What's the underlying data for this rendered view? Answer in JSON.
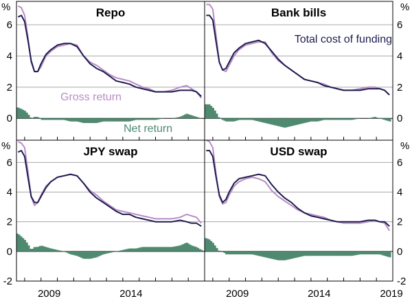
{
  "chart_data": {
    "type": "line",
    "y_unit": "%",
    "x_ticks": [
      "2009",
      "2014",
      "2019"
    ],
    "x_range": [
      2007.5,
      2019.0
    ],
    "y_ticks_top": [
      0,
      2,
      4,
      6
    ],
    "y_ticks_bottom": [
      -2,
      0,
      2,
      4,
      6
    ],
    "ylim_top": [
      -1.4,
      7.5
    ],
    "ylim_bottom": [
      -2,
      7.5
    ],
    "annotations": {
      "total_cost": "Total cost of funding",
      "gross": "Gross return",
      "net": "Net return"
    },
    "colors": {
      "total_cost": "#1c1c4e",
      "gross": "#b88bc6",
      "net": "#4f8a70",
      "grid": "#a8a8a8"
    },
    "x": [
      2007.6,
      2007.8,
      2008.0,
      2008.2,
      2008.4,
      2008.6,
      2008.8,
      2009.0,
      2009.3,
      2009.6,
      2010.0,
      2010.4,
      2010.8,
      2011.2,
      2011.6,
      2012.0,
      2012.4,
      2012.8,
      2013.2,
      2013.6,
      2014.0,
      2014.4,
      2014.8,
      2015.2,
      2015.6,
      2016.0,
      2016.5,
      2017.0,
      2017.5,
      2017.9,
      2018.2,
      2018.5,
      2018.8
    ],
    "panels": [
      {
        "title": "Repo",
        "series": [
          {
            "name": "Gross return",
            "values": [
              7.2,
              7.1,
              6.6,
              5.2,
              3.6,
              3.0,
              3.0,
              3.3,
              4.0,
              4.3,
              4.6,
              4.7,
              4.8,
              4.7,
              4.0,
              3.6,
              3.4,
              3.1,
              2.8,
              2.6,
              2.5,
              2.4,
              2.2,
              2.0,
              1.9,
              1.7,
              1.7,
              1.8,
              2.0,
              2.1,
              1.9,
              1.7,
              1.3
            ]
          },
          {
            "name": "Total cost of funding",
            "values": [
              6.5,
              6.6,
              6.2,
              5.0,
              3.7,
              3.0,
              3.0,
              3.5,
              4.1,
              4.4,
              4.7,
              4.8,
              4.8,
              4.6,
              4.0,
              3.5,
              3.2,
              3.0,
              2.7,
              2.4,
              2.3,
              2.2,
              2.0,
              1.9,
              1.8,
              1.7,
              1.7,
              1.7,
              1.8,
              1.8,
              1.8,
              1.7,
              1.4
            ]
          },
          {
            "name": "Net return",
            "values": [
              0.7,
              0.6,
              0.5,
              0.3,
              0.0,
              0.1,
              0.1,
              -0.1,
              -0.1,
              -0.1,
              -0.1,
              -0.1,
              -0.2,
              -0.2,
              -0.3,
              -0.3,
              -0.3,
              -0.2,
              -0.2,
              -0.2,
              -0.2,
              -0.2,
              -0.1,
              -0.1,
              -0.1,
              -0.1,
              0.0,
              0.0,
              0.1,
              0.3,
              0.2,
              0.1,
              0.0
            ]
          }
        ]
      },
      {
        "title": "Bank bills",
        "series": [
          {
            "name": "Gross return",
            "values": [
              7.3,
              7.3,
              7.0,
              5.3,
              3.6,
              3.1,
              3.0,
              3.4,
              4.0,
              4.4,
              4.7,
              4.8,
              4.9,
              4.9,
              4.2,
              3.7,
              3.4,
              3.1,
              2.8,
              2.5,
              2.4,
              2.3,
              2.2,
              2.0,
              1.9,
              1.8,
              1.8,
              1.9,
              2.0,
              2.0,
              1.9,
              1.8,
              1.5
            ]
          },
          {
            "name": "Total cost of funding",
            "values": [
              6.6,
              6.6,
              6.3,
              4.9,
              3.6,
              3.1,
              3.2,
              3.6,
              4.2,
              4.5,
              4.8,
              4.9,
              5.0,
              4.8,
              4.3,
              3.8,
              3.4,
              3.1,
              2.8,
              2.5,
              2.4,
              2.3,
              2.1,
              2.0,
              1.9,
              1.8,
              1.8,
              1.8,
              1.9,
              1.9,
              1.9,
              1.8,
              1.5
            ]
          },
          {
            "name": "Net return",
            "values": [
              0.9,
              0.9,
              0.7,
              0.4,
              0.0,
              -0.1,
              -0.2,
              -0.2,
              -0.2,
              -0.1,
              -0.1,
              -0.1,
              -0.2,
              -0.3,
              -0.4,
              -0.5,
              -0.6,
              -0.5,
              -0.4,
              -0.3,
              -0.2,
              -0.2,
              -0.1,
              -0.1,
              -0.1,
              -0.1,
              -0.1,
              0.0,
              0.0,
              0.1,
              0.0,
              -0.1,
              -0.2
            ]
          }
        ]
      },
      {
        "title": "JPY swap",
        "series": [
          {
            "name": "Gross return",
            "values": [
              7.4,
              7.3,
              7.0,
              5.4,
              3.7,
              3.1,
              3.3,
              3.8,
              4.4,
              4.7,
              5.0,
              5.1,
              5.2,
              5.1,
              4.6,
              4.1,
              3.8,
              3.4,
              3.1,
              2.8,
              2.7,
              2.6,
              2.5,
              2.4,
              2.3,
              2.2,
              2.2,
              2.2,
              2.3,
              2.5,
              2.4,
              2.3,
              1.9
            ]
          },
          {
            "name": "Total cost of funding",
            "values": [
              6.7,
              6.8,
              6.4,
              5.0,
              3.7,
              3.3,
              3.3,
              3.7,
              4.3,
              4.7,
              5.0,
              5.1,
              5.2,
              5.1,
              4.6,
              4.0,
              3.6,
              3.3,
              3.0,
              2.7,
              2.5,
              2.5,
              2.3,
              2.2,
              2.1,
              2.0,
              2.0,
              2.0,
              2.1,
              2.0,
              1.9,
              1.9,
              1.7
            ]
          },
          {
            "name": "Net return",
            "values": [
              1.2,
              1.0,
              0.8,
              0.5,
              0.1,
              0.3,
              0.3,
              0.4,
              0.3,
              0.2,
              0.1,
              0.0,
              -0.2,
              -0.3,
              -0.5,
              -0.5,
              -0.4,
              -0.2,
              -0.1,
              0.0,
              0.1,
              0.2,
              0.2,
              0.3,
              0.3,
              0.3,
              0.3,
              0.3,
              0.4,
              0.6,
              0.4,
              0.3,
              0.1
            ]
          }
        ]
      },
      {
        "title": "USD swap",
        "series": [
          {
            "name": "Gross return",
            "values": [
              7.5,
              7.4,
              7.0,
              5.2,
              3.7,
              3.2,
              3.3,
              3.8,
              4.4,
              4.7,
              4.9,
              5.0,
              4.9,
              4.7,
              4.1,
              3.7,
              3.4,
              3.1,
              2.8,
              2.6,
              2.5,
              2.4,
              2.3,
              2.1,
              2.0,
              1.9,
              1.9,
              1.9,
              2.0,
              2.1,
              2.0,
              1.9,
              1.4
            ]
          },
          {
            "name": "Total cost of funding",
            "values": [
              6.8,
              6.8,
              6.4,
              5.0,
              3.8,
              3.3,
              3.5,
              4.0,
              4.6,
              4.9,
              5.0,
              5.1,
              5.2,
              5.1,
              4.5,
              4.0,
              3.6,
              3.3,
              2.9,
              2.6,
              2.4,
              2.3,
              2.2,
              2.1,
              2.0,
              2.0,
              2.0,
              2.0,
              2.1,
              2.1,
              2.0,
              2.0,
              1.7
            ]
          },
          {
            "name": "Net return",
            "values": [
              0.9,
              0.8,
              0.6,
              0.3,
              0.0,
              0.0,
              -0.2,
              -0.2,
              -0.2,
              -0.2,
              -0.2,
              -0.2,
              -0.3,
              -0.4,
              -0.5,
              -0.6,
              -0.6,
              -0.5,
              -0.4,
              -0.3,
              -0.3,
              -0.3,
              -0.3,
              -0.3,
              -0.3,
              -0.3,
              -0.3,
              -0.2,
              -0.2,
              -0.2,
              -0.2,
              -0.3,
              -0.4
            ]
          }
        ]
      }
    ]
  }
}
